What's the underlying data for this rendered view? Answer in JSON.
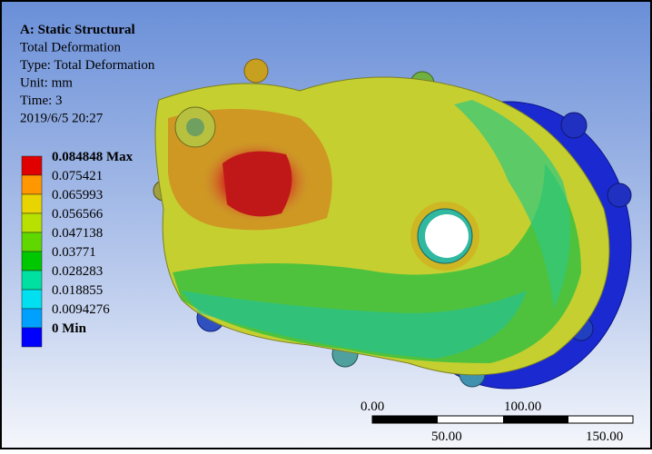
{
  "header": {
    "lines": [
      "A: Static Structural",
      "Total Deformation",
      "Type: Total Deformation",
      "Unit: mm",
      "Time: 3",
      "2019/6/5 20:27"
    ]
  },
  "legend": {
    "entries": [
      {
        "label": "0.084848 Max",
        "color": "#e00000"
      },
      {
        "label": "0.075421",
        "color": "#ff9800"
      },
      {
        "label": "0.065993",
        "color": "#e8d400"
      },
      {
        "label": "0.056566",
        "color": "#b8e000"
      },
      {
        "label": "0.047138",
        "color": "#60d800"
      },
      {
        "label": "0.03771",
        "color": "#00c800"
      },
      {
        "label": "0.028283",
        "color": "#00e0a0"
      },
      {
        "label": "0.018855",
        "color": "#00e0f0"
      },
      {
        "label": "0.0094276",
        "color": "#00a0ff"
      },
      {
        "label": "0 Min",
        "color": "#0000ff"
      }
    ]
  },
  "scale_bar": {
    "top_labels": [
      "0.00",
      "100.00"
    ],
    "bottom_labels": [
      "50.00",
      "150.00"
    ]
  }
}
